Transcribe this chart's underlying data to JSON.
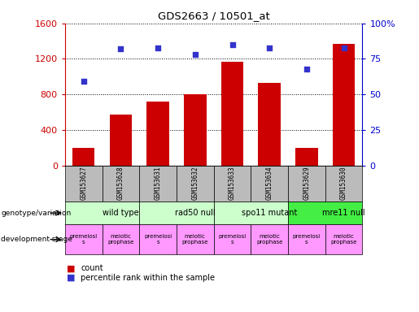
{
  "title": "GDS2663 / 10501_at",
  "samples": [
    "GSM153627",
    "GSM153628",
    "GSM153631",
    "GSM153632",
    "GSM153633",
    "GSM153634",
    "GSM153629",
    "GSM153630"
  ],
  "counts": [
    195,
    570,
    720,
    800,
    1170,
    930,
    195,
    1370
  ],
  "percentile_ranks": [
    59,
    82,
    83,
    78,
    85,
    83,
    68,
    83
  ],
  "ylim_left": [
    0,
    1600
  ],
  "ylim_right": [
    0,
    100
  ],
  "yticks_left": [
    0,
    400,
    800,
    1200,
    1600
  ],
  "yticks_right": [
    0,
    25,
    50,
    75,
    100
  ],
  "ytick_labels_right": [
    "0",
    "25",
    "50",
    "75",
    "100%"
  ],
  "bar_color": "#cc0000",
  "dot_color": "#3333cc",
  "genotype_groups": [
    {
      "label": "wild type",
      "start": 0,
      "end": 2,
      "color": "#ccffcc"
    },
    {
      "label": "rad50 null",
      "start": 2,
      "end": 4,
      "color": "#ccffcc"
    },
    {
      "label": "spo11 mutant",
      "start": 4,
      "end": 6,
      "color": "#ccffcc"
    },
    {
      "label": "mre11 null",
      "start": 6,
      "end": 8,
      "color": "#44ee44"
    }
  ],
  "dev_stage_labels": [
    "premeiosi\ns",
    "meiotic\nprophase",
    "premeiosi\ns",
    "meiotic\nprophase",
    "premeiosi\ns",
    "meiotic\nprophase",
    "premeiosi\ns",
    "meiotic\nprophase"
  ],
  "dev_stage_color": "#ff99ff",
  "sample_row_color": "#bbbbbb",
  "left_ylabel_color": "#cc0000",
  "right_ylabel_color": "#0000cc"
}
